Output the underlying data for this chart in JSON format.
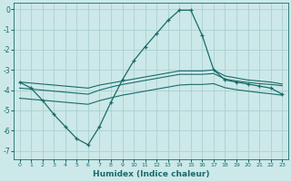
{
  "xlabel": "Humidex (Indice chaleur)",
  "xlim": [
    -0.5,
    23.5
  ],
  "ylim": [
    -7.4,
    0.3
  ],
  "yticks": [
    0,
    -1,
    -2,
    -3,
    -4,
    -5,
    -6,
    -7
  ],
  "xticks": [
    0,
    1,
    2,
    3,
    4,
    5,
    6,
    7,
    8,
    9,
    10,
    11,
    12,
    13,
    14,
    15,
    16,
    17,
    18,
    19,
    20,
    21,
    22,
    23
  ],
  "bg_color": "#cce8e8",
  "grid_color": "#aad0d0",
  "line_color": "#1a6b6b",
  "line1_x": [
    0,
    1,
    2,
    3,
    4,
    5,
    6,
    7,
    8,
    9,
    10,
    11,
    12,
    13,
    14,
    15,
    16,
    17,
    18,
    19,
    20,
    21,
    22,
    23
  ],
  "line1_y": [
    -3.6,
    -3.9,
    -4.5,
    -5.2,
    -5.8,
    -6.4,
    -6.7,
    -5.8,
    -4.6,
    -3.5,
    -2.55,
    -1.85,
    -1.2,
    -0.55,
    -0.05,
    -0.05,
    -1.3,
    -3.0,
    -3.5,
    -3.6,
    -3.7,
    -3.8,
    -3.9,
    -4.2
  ],
  "line2_x": [
    0,
    1,
    2,
    3,
    4,
    5,
    6,
    7,
    8,
    9,
    10,
    11,
    12,
    13,
    14,
    15,
    16,
    17,
    18,
    19,
    20,
    21,
    22,
    23
  ],
  "line2_y": [
    -3.6,
    -3.65,
    -3.7,
    -3.75,
    -3.8,
    -3.85,
    -3.9,
    -3.75,
    -3.65,
    -3.55,
    -3.45,
    -3.35,
    -3.25,
    -3.15,
    -3.05,
    -3.05,
    -3.05,
    -3.0,
    -3.3,
    -3.4,
    -3.5,
    -3.55,
    -3.6,
    -3.7
  ],
  "line3_x": [
    0,
    1,
    2,
    3,
    4,
    5,
    6,
    7,
    8,
    9,
    10,
    11,
    12,
    13,
    14,
    15,
    16,
    17,
    18,
    19,
    20,
    21,
    22,
    23
  ],
  "line3_y": [
    -3.9,
    -3.95,
    -4.0,
    -4.05,
    -4.1,
    -4.15,
    -4.2,
    -4.0,
    -3.85,
    -3.72,
    -3.62,
    -3.52,
    -3.42,
    -3.32,
    -3.22,
    -3.22,
    -3.22,
    -3.18,
    -3.45,
    -3.55,
    -3.62,
    -3.68,
    -3.72,
    -3.78
  ],
  "line4_x": [
    0,
    1,
    2,
    3,
    4,
    5,
    6,
    7,
    8,
    9,
    10,
    11,
    12,
    13,
    14,
    15,
    16,
    17,
    18,
    19,
    20,
    21,
    22,
    23
  ],
  "line4_y": [
    -4.4,
    -4.45,
    -4.5,
    -4.55,
    -4.6,
    -4.65,
    -4.7,
    -4.52,
    -4.38,
    -4.25,
    -4.15,
    -4.05,
    -3.95,
    -3.85,
    -3.75,
    -3.72,
    -3.72,
    -3.68,
    -3.88,
    -3.98,
    -4.05,
    -4.12,
    -4.18,
    -4.25
  ]
}
